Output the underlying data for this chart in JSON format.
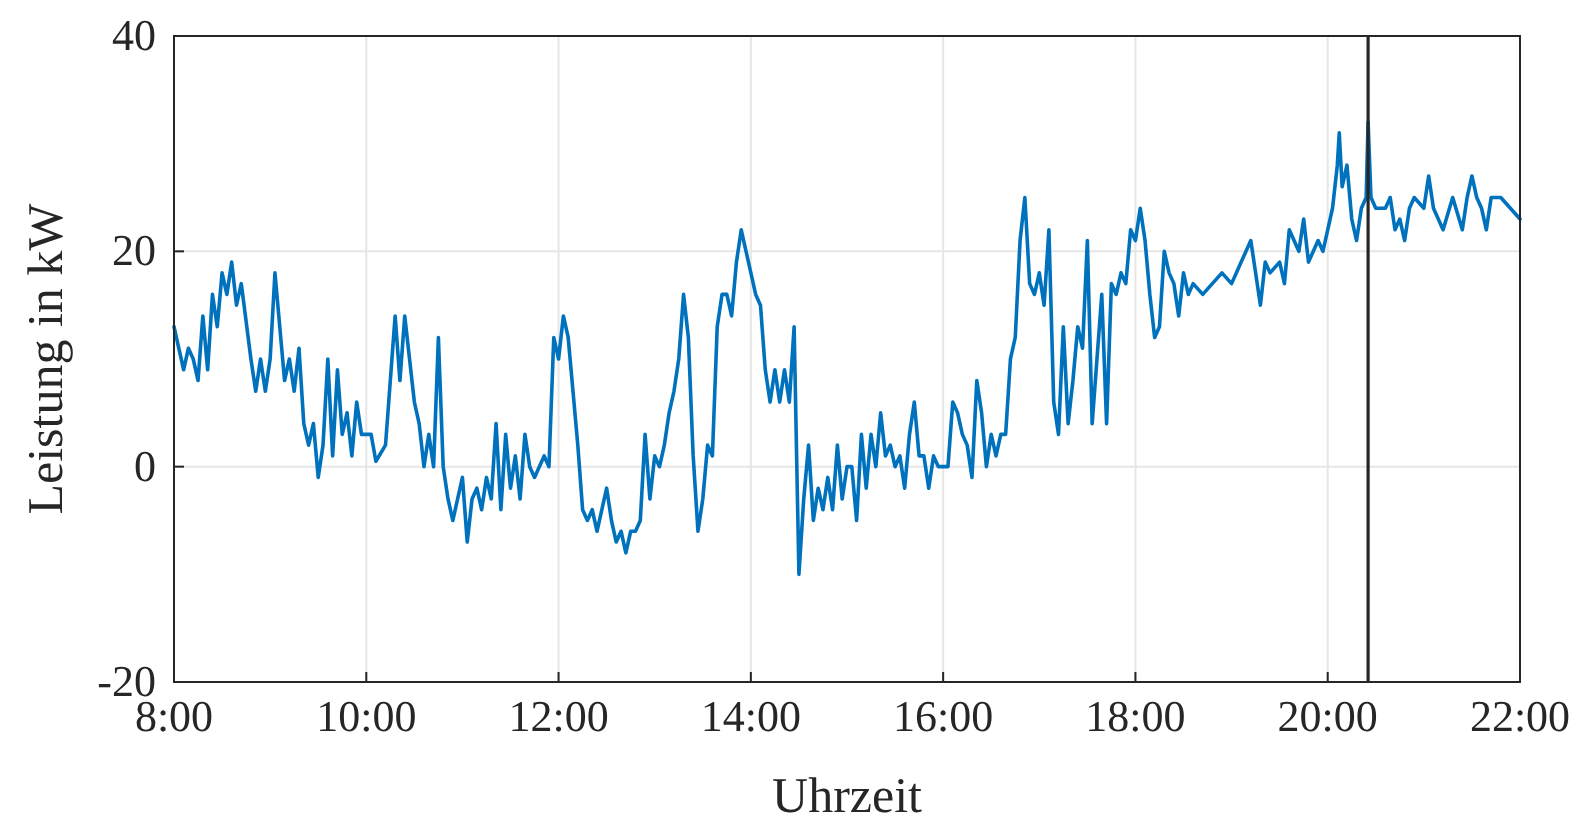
{
  "chart_data": {
    "type": "line",
    "xlabel": "Uhrzeit",
    "ylabel": "Leistung in kW",
    "xlim": [
      8,
      22
    ],
    "xticks": [
      {
        "value": 8,
        "label": "8:00"
      },
      {
        "value": 10,
        "label": "10:00"
      },
      {
        "value": 12,
        "label": "12:00"
      },
      {
        "value": 14,
        "label": "14:00"
      },
      {
        "value": 16,
        "label": "16:00"
      },
      {
        "value": 18,
        "label": "18:00"
      },
      {
        "value": 20,
        "label": "20:00"
      },
      {
        "value": 22,
        "label": "22:00"
      }
    ],
    "ylim": [
      -20,
      40
    ],
    "yticks": [
      -20,
      0,
      20,
      40
    ],
    "grid": true,
    "ref_lines": [
      {
        "axis": "x",
        "value": 20.42,
        "color": "#262626"
      }
    ],
    "series": [
      {
        "color": "#0072bd",
        "x": [
          8,
          8.05,
          8.1,
          8.15,
          8.2,
          8.25,
          8.3,
          8.35,
          8.4,
          8.45,
          8.5,
          8.55,
          8.6,
          8.65,
          8.7,
          8.8,
          8.85,
          8.9,
          8.95,
          9,
          9.05,
          9.1,
          9.15,
          9.2,
          9.25,
          9.3,
          9.35,
          9.4,
          9.45,
          9.5,
          9.55,
          9.6,
          9.65,
          9.7,
          9.75,
          9.8,
          9.85,
          9.9,
          9.95,
          10.05,
          10.1,
          10.2,
          10.3,
          10.35,
          10.4,
          10.45,
          10.5,
          10.55,
          10.6,
          10.65,
          10.7,
          10.75,
          10.8,
          10.85,
          10.9,
          10.95,
          11,
          11.05,
          11.1,
          11.15,
          11.2,
          11.25,
          11.3,
          11.35,
          11.4,
          11.45,
          11.5,
          11.55,
          11.6,
          11.65,
          11.7,
          11.75,
          11.85,
          11.9,
          11.95,
          12,
          12.05,
          12.1,
          12.15,
          12.2,
          12.25,
          12.3,
          12.35,
          12.4,
          12.45,
          12.5,
          12.55,
          12.6,
          12.65,
          12.7,
          12.75,
          12.8,
          12.85,
          12.9,
          12.95,
          13,
          13.05,
          13.1,
          13.15,
          13.2,
          13.25,
          13.3,
          13.35,
          13.4,
          13.45,
          13.5,
          13.55,
          13.6,
          13.65,
          13.7,
          13.75,
          13.8,
          13.85,
          13.9,
          13.95,
          14,
          14.05,
          14.1,
          14.15,
          14.2,
          14.25,
          14.3,
          14.35,
          14.4,
          14.45,
          14.5,
          14.55,
          14.6,
          14.65,
          14.7,
          14.75,
          14.8,
          14.85,
          14.9,
          14.95,
          15,
          15.05,
          15.1,
          15.15,
          15.2,
          15.25,
          15.3,
          15.35,
          15.4,
          15.45,
          15.5,
          15.55,
          15.6,
          15.65,
          15.7,
          15.75,
          15.8,
          15.85,
          15.9,
          15.95,
          16.05,
          16.1,
          16.15,
          16.2,
          16.25,
          16.3,
          16.35,
          16.4,
          16.45,
          16.5,
          16.55,
          16.6,
          16.65,
          16.7,
          16.75,
          16.8,
          16.85,
          16.9,
          16.95,
          17,
          17.05,
          17.1,
          17.15,
          17.2,
          17.25,
          17.3,
          17.35,
          17.4,
          17.45,
          17.5,
          17.55,
          17.6,
          17.65,
          17.7,
          17.75,
          17.8,
          17.85,
          17.9,
          17.95,
          18,
          18.05,
          18.1,
          18.15,
          18.2,
          18.25,
          18.3,
          18.35,
          18.4,
          18.45,
          18.5,
          18.55,
          18.6,
          18.7,
          18.8,
          18.9,
          19,
          19.1,
          19.2,
          19.3,
          19.35,
          19.4,
          19.5,
          19.55,
          19.6,
          19.7,
          19.75,
          19.8,
          19.9,
          19.95,
          20,
          20.05,
          20.1,
          20.12,
          20.15,
          20.2,
          20.25,
          20.3,
          20.35,
          20.4,
          20.42,
          20.45,
          20.5,
          20.6,
          20.65,
          20.7,
          20.75,
          20.8,
          20.85,
          20.9,
          21,
          21.05,
          21.1,
          21.15,
          21.2,
          21.3,
          21.4,
          21.45,
          21.5,
          21.55,
          21.6,
          21.65,
          21.7,
          21.8,
          21.9,
          22
        ],
        "values": [
          13,
          11,
          9,
          11,
          10,
          8,
          14,
          9,
          16,
          13,
          18,
          16,
          19,
          15,
          17,
          10,
          7,
          10,
          7,
          10,
          18,
          13,
          8,
          10,
          7,
          11,
          4,
          2,
          4,
          -1,
          2,
          10,
          1,
          9,
          3,
          5,
          1,
          6,
          3,
          3,
          0.5,
          2,
          14,
          8,
          14,
          10,
          6,
          4,
          0,
          3,
          0,
          12,
          0,
          -3,
          -5,
          -3,
          -1,
          -7,
          -3,
          -2,
          -4,
          -1,
          -3,
          4,
          -4,
          3,
          -2,
          1,
          -3,
          3,
          0,
          -1,
          1,
          0,
          12,
          10,
          14,
          12,
          7,
          2,
          -4,
          -5,
          -4,
          -6,
          -4,
          -2,
          -5,
          -7,
          -6,
          -8,
          -6,
          -6,
          -5,
          3,
          -3,
          1,
          0,
          2,
          5,
          7,
          10,
          16,
          12,
          1,
          -6,
          -3,
          2,
          1,
          13,
          16,
          16,
          14,
          19,
          22,
          20,
          18,
          16,
          15,
          9,
          6,
          9,
          6,
          9,
          6,
          13,
          -10,
          -3,
          2,
          -5,
          -2,
          -4,
          -1,
          -4,
          2,
          -3,
          0,
          0,
          -5,
          3,
          -2,
          3,
          0,
          5,
          1,
          2,
          0,
          1,
          -2,
          3,
          6,
          1,
          1,
          -2,
          1,
          0,
          0,
          6,
          5,
          3,
          2,
          -1,
          8,
          5,
          0,
          3,
          1,
          3,
          3,
          10,
          12,
          21,
          25,
          17,
          16,
          18,
          15,
          22,
          6,
          3,
          13,
          4,
          8,
          13,
          11,
          21,
          4,
          10,
          16,
          4,
          17,
          16,
          18,
          17,
          22,
          21,
          24,
          21,
          16,
          12,
          13,
          20,
          18,
          17,
          14,
          18,
          16,
          17,
          16,
          17,
          18,
          17,
          19,
          21,
          15,
          19,
          18,
          19,
          17,
          22,
          20,
          23,
          19,
          21,
          20,
          22,
          24,
          28,
          31,
          26,
          28,
          23,
          21,
          24,
          25,
          32,
          25,
          24,
          24,
          25,
          22,
          23,
          21,
          24,
          25,
          24,
          27,
          24,
          23,
          22,
          25,
          22,
          25,
          27,
          25,
          24,
          22,
          25,
          25,
          24,
          23
        ]
      }
    ]
  }
}
